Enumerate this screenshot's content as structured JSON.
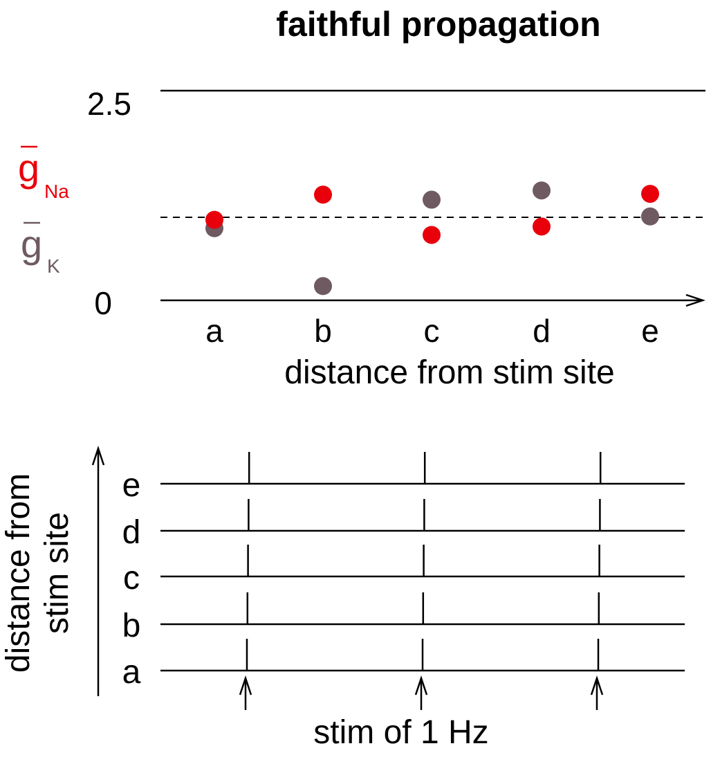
{
  "title": "faithful propagation",
  "colors": {
    "gna": "#e8000b",
    "gk": "#6e5a60",
    "axis": "#000000"
  },
  "top_chart": {
    "y_tick_top": "2.5",
    "y_tick_bottom": "0",
    "xlabel": "distance from stim site",
    "legend": {
      "gna_main": "g",
      "gna_sub": "Na",
      "gk_main": "g",
      "gk_sub": "K"
    }
  },
  "bottom_chart": {
    "ylabel_line1": "distance from",
    "ylabel_line2": "stim site",
    "xlabel": "stim of 1 Hz",
    "rows": [
      "a",
      "b",
      "c",
      "d",
      "e"
    ]
  },
  "chart_data": [
    {
      "type": "scatter",
      "title": "faithful propagation",
      "xlabel": "distance from stim site",
      "ylabel": "",
      "categories": [
        "a",
        "b",
        "c",
        "d",
        "e"
      ],
      "ylim": [
        0,
        2.5
      ],
      "reference_line": 1.0,
      "series": [
        {
          "name": "gNa",
          "color": "#e8000b",
          "values": [
            0.96,
            1.26,
            0.78,
            0.88,
            1.27
          ]
        },
        {
          "name": "gK",
          "color": "#6e5a60",
          "values": [
            0.86,
            0.17,
            1.2,
            1.31,
            1.0
          ]
        }
      ]
    },
    {
      "type": "line",
      "title": "",
      "xlabel": "stim of 1 Hz",
      "ylabel": "distance from stim site",
      "categories": [
        "a",
        "b",
        "c",
        "d",
        "e"
      ],
      "spike_times_s": [
        0,
        1,
        2
      ],
      "stimulus_times_s": [
        0,
        1,
        2
      ],
      "series": [
        {
          "name": "a",
          "spikes": [
            0,
            1,
            2
          ]
        },
        {
          "name": "b",
          "spikes": [
            0,
            1,
            2
          ]
        },
        {
          "name": "c",
          "spikes": [
            0,
            1,
            2
          ]
        },
        {
          "name": "d",
          "spikes": [
            0,
            1,
            2
          ]
        },
        {
          "name": "e",
          "spikes": [
            0,
            1,
            2
          ]
        }
      ]
    }
  ]
}
